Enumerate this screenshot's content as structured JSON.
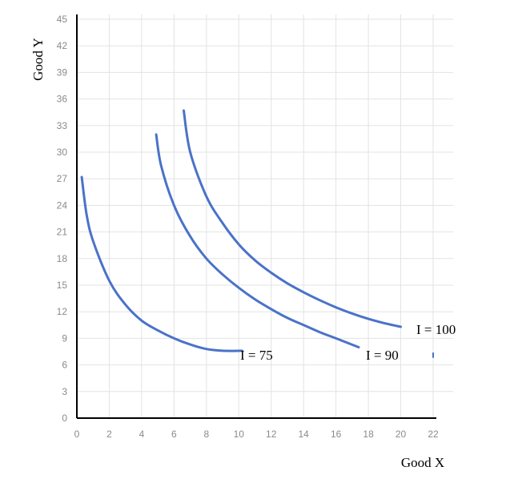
{
  "chart_data": {
    "type": "line",
    "title": "",
    "xlabel": "Good X",
    "ylabel": "Good Y",
    "xlim": [
      0,
      22
    ],
    "ylim": [
      0,
      45
    ],
    "x_ticks": [
      0,
      2,
      4,
      6,
      8,
      10,
      12,
      14,
      16,
      18,
      20,
      22
    ],
    "y_ticks": [
      0,
      3,
      6,
      9,
      12,
      15,
      18,
      21,
      24,
      27,
      30,
      33,
      36,
      39,
      42,
      45
    ],
    "grid": true,
    "series_color": "#4a72c9",
    "series": [
      {
        "name": "I = 75",
        "points": [
          [
            0.3,
            27.2
          ],
          [
            0.6,
            23.0
          ],
          [
            1.0,
            20.0
          ],
          [
            2.0,
            15.5
          ],
          [
            3.0,
            12.8
          ],
          [
            4.0,
            11.0
          ],
          [
            5.0,
            9.9
          ],
          [
            6.0,
            9.0
          ],
          [
            7.0,
            8.3
          ],
          [
            8.0,
            7.8
          ],
          [
            9.0,
            7.6
          ],
          [
            10.2,
            7.6
          ]
        ]
      },
      {
        "name": "I = 90",
        "points": [
          [
            4.9,
            32.0
          ],
          [
            5.2,
            28.5
          ],
          [
            6.0,
            24.0
          ],
          [
            7.0,
            20.5
          ],
          [
            8.0,
            18.0
          ],
          [
            9.0,
            16.2
          ],
          [
            10.0,
            14.7
          ],
          [
            11.0,
            13.4
          ],
          [
            12.0,
            12.3
          ],
          [
            13.0,
            11.3
          ],
          [
            14.0,
            10.5
          ],
          [
            15.0,
            9.7
          ],
          [
            16.0,
            9.0
          ],
          [
            17.4,
            8.0
          ]
        ]
      },
      {
        "name": "I = 100",
        "points": [
          [
            6.6,
            34.7
          ],
          [
            7.0,
            30.0
          ],
          [
            8.0,
            25.0
          ],
          [
            9.0,
            22.0
          ],
          [
            10.0,
            19.6
          ],
          [
            11.0,
            17.8
          ],
          [
            12.0,
            16.4
          ],
          [
            13.0,
            15.2
          ],
          [
            14.0,
            14.2
          ],
          [
            15.0,
            13.3
          ],
          [
            16.0,
            12.5
          ],
          [
            17.0,
            11.8
          ],
          [
            18.0,
            11.2
          ],
          [
            19.0,
            10.7
          ],
          [
            20.0,
            10.3
          ]
        ]
      }
    ]
  }
}
